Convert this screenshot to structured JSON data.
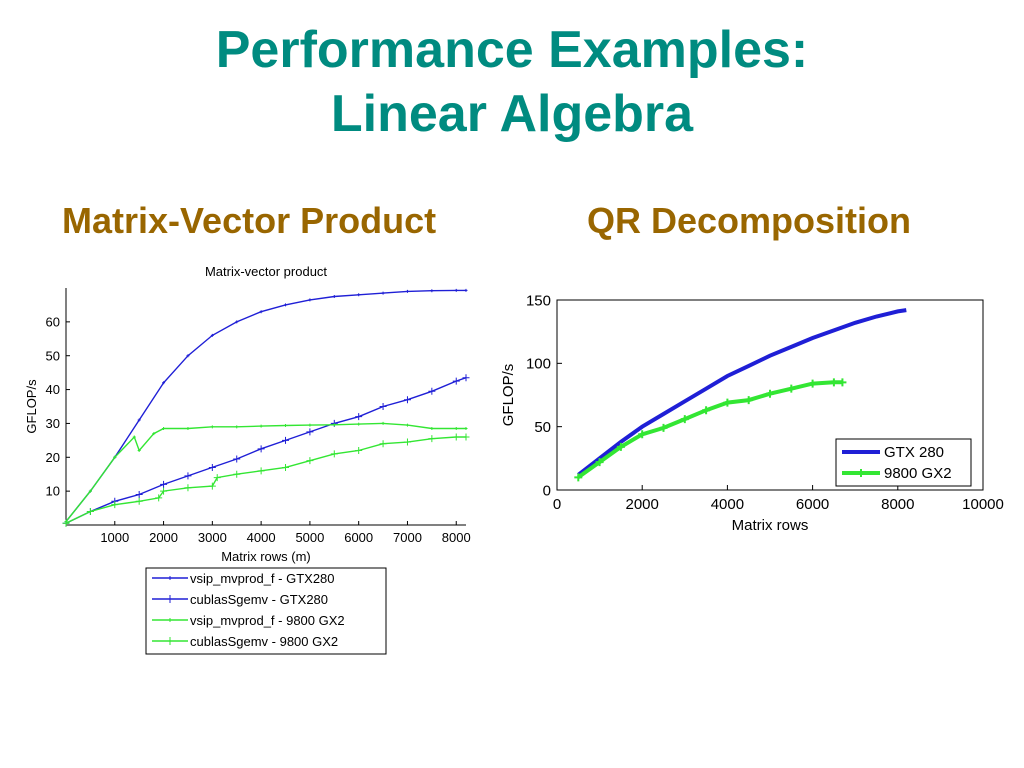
{
  "slide": {
    "title_line1": "Performance Examples:",
    "title_line2": "Linear Algebra",
    "left_subtitle": "Matrix-Vector Product",
    "right_subtitle": "QR Decomposition"
  },
  "chart_data": [
    {
      "type": "line",
      "title": "Matrix-vector product",
      "xlabel": "Matrix rows (m)",
      "ylabel": "GFLOP/s",
      "xlim": [
        0,
        8200
      ],
      "ylim": [
        0,
        70
      ],
      "xticks": [
        1000,
        2000,
        3000,
        4000,
        5000,
        6000,
        7000,
        8000
      ],
      "yticks": [
        10,
        20,
        30,
        40,
        50,
        60
      ],
      "grid": false,
      "legend_position": "below",
      "series": [
        {
          "name": "vsip_mvprod_f - GTX280",
          "color": "#1f1fd6",
          "x": [
            0,
            500,
            1000,
            1500,
            2000,
            2500,
            3000,
            3500,
            4000,
            4500,
            5000,
            5500,
            6000,
            6500,
            7000,
            7500,
            8000,
            8200
          ],
          "y": [
            1,
            10,
            20,
            31,
            42,
            50,
            56,
            60,
            63,
            65,
            66.5,
            67.5,
            68,
            68.5,
            69,
            69.2,
            69.3,
            69.3
          ]
        },
        {
          "name": "cublasSgemv - GTX280",
          "color": "#1f1fd6",
          "x": [
            0,
            500,
            1000,
            1500,
            2000,
            2500,
            3000,
            3500,
            4000,
            4500,
            5000,
            5500,
            6000,
            6500,
            7000,
            7500,
            8000,
            8200
          ],
          "y": [
            0.5,
            4,
            7,
            9,
            12,
            14.5,
            17,
            19.5,
            22.5,
            25,
            27.5,
            30,
            32,
            35,
            37,
            39.5,
            42.5,
            43.5
          ]
        },
        {
          "name": "vsip_mvprod_f - 9800 GX2",
          "color": "#33e633",
          "x": [
            0,
            500,
            1000,
            1400,
            1500,
            1800,
            2000,
            2500,
            3000,
            3500,
            4000,
            4500,
            5000,
            5500,
            6000,
            6500,
            7000,
            7500,
            8000,
            8200
          ],
          "y": [
            1,
            10,
            20,
            26,
            22,
            27,
            28.5,
            28.5,
            29,
            29,
            29.2,
            29.4,
            29.5,
            29.6,
            29.8,
            30,
            29.5,
            28.5,
            28.5,
            28.5
          ]
        },
        {
          "name": "cublasSgemv - 9800 GX2",
          "color": "#33e633",
          "x": [
            0,
            500,
            1000,
            1500,
            1900,
            2000,
            2500,
            3000,
            3100,
            3500,
            4000,
            4500,
            5000,
            5500,
            6000,
            6500,
            7000,
            7500,
            8000,
            8200
          ],
          "y": [
            0.5,
            4,
            6,
            7,
            8,
            10,
            11,
            11.5,
            14,
            15,
            16,
            17,
            19,
            21,
            22,
            24,
            24.5,
            25.5,
            26,
            26
          ]
        }
      ]
    },
    {
      "type": "line",
      "title": "",
      "xlabel": "Matrix rows",
      "ylabel": "GFLOP/s",
      "xlim": [
        0,
        10000
      ],
      "ylim": [
        0,
        150
      ],
      "xticks": [
        0,
        2000,
        4000,
        6000,
        8000,
        10000
      ],
      "yticks": [
        0,
        50,
        100,
        150
      ],
      "grid": false,
      "legend_position": "bottom-right",
      "series": [
        {
          "name": "GTX 280",
          "color": "#1f1fd6",
          "x": [
            500,
            1000,
            1500,
            2000,
            2500,
            3000,
            3500,
            4000,
            4500,
            5000,
            5500,
            6000,
            6500,
            7000,
            7500,
            8000,
            8200
          ],
          "y": [
            12,
            25,
            38,
            50,
            60,
            70,
            80,
            90,
            98,
            106,
            113,
            120,
            126,
            132,
            137,
            141,
            142
          ]
        },
        {
          "name": "9800 GX2",
          "color": "#33e633",
          "x": [
            500,
            1000,
            1500,
            2000,
            2500,
            3000,
            3500,
            4000,
            4500,
            5000,
            5500,
            6000,
            6500,
            6700
          ],
          "y": [
            10,
            22,
            34,
            44,
            49,
            56,
            63,
            69,
            71,
            76,
            80,
            84,
            85,
            85
          ]
        }
      ]
    }
  ]
}
